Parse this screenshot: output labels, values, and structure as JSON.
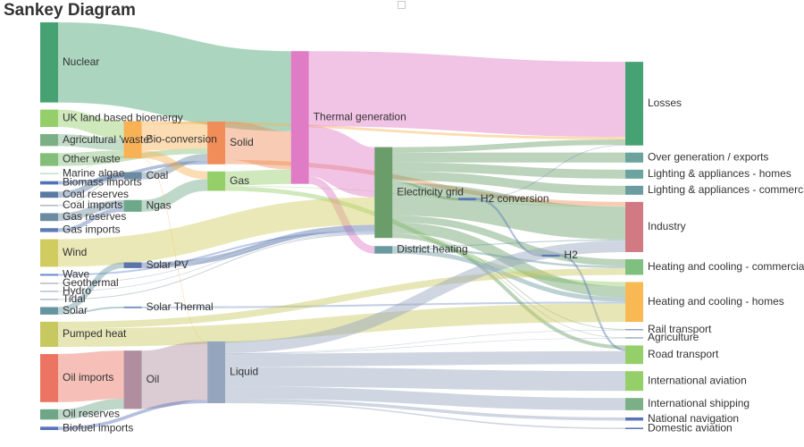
{
  "title": "Sankey Diagram",
  "toolbox": {
    "icon": "restore-square-icon"
  },
  "chart_data": {
    "type": "sankey",
    "nodes": [
      {
        "id": "nuclear",
        "name": "Nuclear",
        "color": "#46a272"
      },
      {
        "id": "uk_bio",
        "name": "UK land based bioenergy",
        "color": "#94cf6a"
      },
      {
        "id": "agri_waste",
        "name": "Agricultural 'waste'",
        "color": "#7bb087"
      },
      {
        "id": "other_waste",
        "name": "Other waste",
        "color": "#84bf79"
      },
      {
        "id": "marine_algae",
        "name": "Marine algae",
        "color": "#a3cfb0"
      },
      {
        "id": "biomass_imports",
        "name": "Biomass imports",
        "color": "#5073b8"
      },
      {
        "id": "coal_reserves",
        "name": "Coal reserves",
        "color": "#5a79a3"
      },
      {
        "id": "coal_imports",
        "name": "Coal imports",
        "color": "#a0a7b4"
      },
      {
        "id": "gas_reserves",
        "name": "Gas reserves",
        "color": "#6c8ba0"
      },
      {
        "id": "gas_imports",
        "name": "Gas imports",
        "color": "#5b7ab6"
      },
      {
        "id": "wind",
        "name": "Wind",
        "color": "#d0cc60"
      },
      {
        "id": "wave",
        "name": "Wave",
        "color": "#6a89cf"
      },
      {
        "id": "geothermal",
        "name": "Geothermal",
        "color": "#8c9aa8"
      },
      {
        "id": "hydro",
        "name": "Hydro",
        "color": "#8fa1c4"
      },
      {
        "id": "tidal",
        "name": "Tidal",
        "color": "#8c9aaa"
      },
      {
        "id": "solar",
        "name": "Solar",
        "color": "#6596a0"
      },
      {
        "id": "pumped_heat",
        "name": "Pumped heat",
        "color": "#c8c860"
      },
      {
        "id": "oil_imports",
        "name": "Oil imports",
        "color": "#ec7463"
      },
      {
        "id": "oil_reserves",
        "name": "Oil reserves",
        "color": "#6ea687"
      },
      {
        "id": "biofuel_imports",
        "name": "Biofuel imports",
        "color": "#5a73b8"
      },
      {
        "id": "bio_conversion",
        "name": "Bio-conversion",
        "color": "#f8b155"
      },
      {
        "id": "coal",
        "name": "Coal",
        "color": "#6c8aa0"
      },
      {
        "id": "ngas",
        "name": "Ngas",
        "color": "#6ea88a"
      },
      {
        "id": "solar_pv",
        "name": "Solar PV",
        "color": "#5a75a8"
      },
      {
        "id": "solar_thermal",
        "name": "Solar Thermal",
        "color": "#7c98c6"
      },
      {
        "id": "oil",
        "name": "Oil",
        "color": "#b08ea0"
      },
      {
        "id": "solid",
        "name": "Solid",
        "color": "#f08d58"
      },
      {
        "id": "gas",
        "name": "Gas",
        "color": "#94cf6a"
      },
      {
        "id": "liquid",
        "name": "Liquid",
        "color": "#95a5bd"
      },
      {
        "id": "thermal_generation",
        "name": "Thermal generation",
        "color": "#e07bc6"
      },
      {
        "id": "electricity_grid",
        "name": "Electricity grid",
        "color": "#6a9d6a"
      },
      {
        "id": "district_heating",
        "name": "District heating",
        "color": "#6a9aa0"
      },
      {
        "id": "h2_conversion",
        "name": "H2 conversion",
        "color": "#5a78b8"
      },
      {
        "id": "h2",
        "name": "H2",
        "color": "#5a78b8"
      },
      {
        "id": "losses",
        "name": "Losses",
        "color": "#46a272"
      },
      {
        "id": "over_generation",
        "name": "Over generation / exports",
        "color": "#6ca39e"
      },
      {
        "id": "lighting_homes",
        "name": "Lighting & appliances - homes",
        "color": "#6ca39e"
      },
      {
        "id": "lighting_commercial",
        "name": "Lighting & appliances - commercial",
        "color": "#6c9ca0"
      },
      {
        "id": "industry",
        "name": "Industry",
        "color": "#d17a84"
      },
      {
        "id": "heating_homes",
        "name": "Heating and cooling - homes",
        "color": "#f8b955"
      },
      {
        "id": "heating_commercial",
        "name": "Heating and cooling - commercial",
        "color": "#7fbf80"
      },
      {
        "id": "agriculture",
        "name": "Agriculture",
        "color": "#6a8ca8"
      },
      {
        "id": "rail_transport",
        "name": "Rail transport",
        "color": "#8a9ab6"
      },
      {
        "id": "road_transport",
        "name": "Road transport",
        "color": "#94cf6a"
      },
      {
        "id": "international_aviation",
        "name": "International aviation",
        "color": "#94cf6a"
      },
      {
        "id": "international_shipping",
        "name": "International shipping",
        "color": "#7bb087"
      },
      {
        "id": "national_navigation",
        "name": "National navigation",
        "color": "#5a73b8"
      },
      {
        "id": "domestic_aviation",
        "name": "Domestic aviation",
        "color": "#5a73b8"
      }
    ],
    "links": [
      {
        "source": "nuclear",
        "target": "thermal_generation",
        "value": 839.98
      },
      {
        "source": "uk_bio",
        "target": "bio_conversion",
        "value": 182.01
      },
      {
        "source": "agri_waste",
        "target": "bio_conversion",
        "value": 124.73
      },
      {
        "source": "other_waste",
        "target": "bio_conversion",
        "value": 77.81
      },
      {
        "source": "other_waste",
        "target": "solid",
        "value": 56.59
      },
      {
        "source": "marine_algae",
        "target": "bio_conversion",
        "value": 4.38
      },
      {
        "source": "biomass_imports",
        "target": "solid",
        "value": 35
      },
      {
        "source": "coal_reserves",
        "target": "coal",
        "value": 63.97
      },
      {
        "source": "coal_imports",
        "target": "coal",
        "value": 11.61
      },
      {
        "source": "coal",
        "target": "solid",
        "value": 75.57
      },
      {
        "source": "gas_reserves",
        "target": "ngas",
        "value": 82.23
      },
      {
        "source": "gas_imports",
        "target": "ngas",
        "value": 40.72
      },
      {
        "source": "ngas",
        "target": "gas",
        "value": 122.95
      },
      {
        "source": "bio_conversion",
        "target": "solid",
        "value": 280.32
      },
      {
        "source": "bio_conversion",
        "target": "gas",
        "value": 81.14
      },
      {
        "source": "bio_conversion",
        "target": "liquid",
        "value": 0.6
      },
      {
        "source": "bio_conversion",
        "target": "losses",
        "value": 26.86
      },
      {
        "source": "solid",
        "target": "thermal_generation",
        "value": 400.12
      },
      {
        "source": "solid",
        "target": "industry",
        "value": 46.48
      },
      {
        "source": "gas",
        "target": "thermal_generation",
        "value": 151.89
      },
      {
        "source": "gas",
        "target": "heating_homes",
        "value": 46.18
      },
      {
        "source": "gas",
        "target": "industry",
        "value": 6.0
      },
      {
        "source": "thermal_generation",
        "target": "losses",
        "value": 787.13
      },
      {
        "source": "thermal_generation",
        "target": "electricity_grid",
        "value": 525.53
      },
      {
        "source": "thermal_generation",
        "target": "district_heating",
        "value": 79.33
      },
      {
        "source": "wind",
        "target": "electricity_grid",
        "value": 289.37
      },
      {
        "source": "wave",
        "target": "electricity_grid",
        "value": 19.01
      },
      {
        "source": "geothermal",
        "target": "electricity_grid",
        "value": 7.01
      },
      {
        "source": "hydro",
        "target": "electricity_grid",
        "value": 6.99
      },
      {
        "source": "tidal",
        "target": "electricity_grid",
        "value": 9.45
      },
      {
        "source": "solar",
        "target": "solar_pv",
        "value": 59.9
      },
      {
        "source": "solar",
        "target": "solar_thermal",
        "value": 19.26
      },
      {
        "source": "solar_pv",
        "target": "electricity_grid",
        "value": 59.9
      },
      {
        "source": "solar_thermal",
        "target": "heating_homes",
        "value": 19.26
      },
      {
        "source": "electricity_grid",
        "target": "over_generation",
        "value": 104.45
      },
      {
        "source": "electricity_grid",
        "target": "lighting_homes",
        "value": 93.85
      },
      {
        "source": "electricity_grid",
        "target": "lighting_commercial",
        "value": 93.85
      },
      {
        "source": "electricity_grid",
        "target": "industry",
        "value": 342.17
      },
      {
        "source": "electricity_grid",
        "target": "heating_homes",
        "value": 113.73
      },
      {
        "source": "electricity_grid",
        "target": "heating_commercial",
        "value": 70.67
      },
      {
        "source": "electricity_grid",
        "target": "h2_conversion",
        "value": 27.14
      },
      {
        "source": "electricity_grid",
        "target": "road_transport",
        "value": 37.8
      },
      {
        "source": "electricity_grid",
        "target": "agriculture",
        "value": 4.41
      },
      {
        "source": "electricity_grid",
        "target": "rail_transport",
        "value": 7.86
      },
      {
        "source": "electricity_grid",
        "target": "losses",
        "value": 56.69
      },
      {
        "source": "h2_conversion",
        "target": "h2",
        "value": 20.9
      },
      {
        "source": "h2_conversion",
        "target": "losses",
        "value": 6.24
      },
      {
        "source": "h2",
        "target": "road_transport",
        "value": 20.9
      },
      {
        "source": "district_heating",
        "target": "industry",
        "value": 10.64
      },
      {
        "source": "district_heating",
        "target": "heating_homes",
        "value": 46.18
      },
      {
        "source": "district_heating",
        "target": "heating_commercial",
        "value": 22.5
      },
      {
        "source": "pumped_heat",
        "target": "heating_homes",
        "value": 193.03
      },
      {
        "source": "pumped_heat",
        "target": "heating_commercial",
        "value": 70.67
      },
      {
        "source": "oil_imports",
        "target": "oil",
        "value": 504.29
      },
      {
        "source": "oil_reserves",
        "target": "oil",
        "value": 107.7
      },
      {
        "source": "oil",
        "target": "liquid",
        "value": 611.99
      },
      {
        "source": "biofuel_imports",
        "target": "liquid",
        "value": 35
      },
      {
        "source": "liquid",
        "target": "industry",
        "value": 121.07
      },
      {
        "source": "liquid",
        "target": "road_transport",
        "value": 135.84
      },
      {
        "source": "liquid",
        "target": "international_aviation",
        "value": 206.27
      },
      {
        "source": "liquid",
        "target": "international_shipping",
        "value": 128.69
      },
      {
        "source": "liquid",
        "target": "national_navigation",
        "value": 33.22
      },
      {
        "source": "liquid",
        "target": "domestic_aviation",
        "value": 14.46
      },
      {
        "source": "liquid",
        "target": "rail_transport",
        "value": 4.8
      },
      {
        "source": "liquid",
        "target": "agriculture",
        "value": 3.32
      }
    ]
  }
}
